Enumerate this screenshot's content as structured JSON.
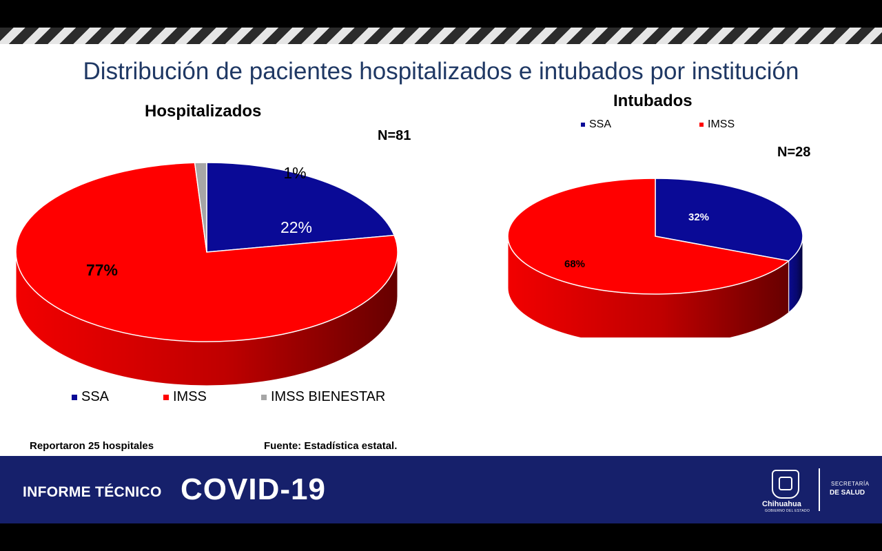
{
  "slide_title": "Distribución de pacientes hospitalizados e intubados por institución",
  "colors": {
    "SSA": "#0a0a96",
    "IMSS": "#ff0000",
    "IMSS BIENESTAR": "#a6a6a6",
    "title": "#1f3864",
    "footer": "#16206b"
  },
  "chart_data": [
    {
      "type": "pie",
      "title": "Hospitalizados",
      "n_label": "N=81",
      "series": [
        {
          "name": "SSA",
          "value": 22,
          "label": "22%"
        },
        {
          "name": "IMSS",
          "value": 77,
          "label": "77%"
        },
        {
          "name": "IMSS BIENESTAR",
          "value": 1,
          "label": "1%"
        }
      ],
      "legend": [
        "SSA",
        "IMSS",
        "IMSS BIENESTAR"
      ],
      "legend_position": "bottom"
    },
    {
      "type": "pie",
      "title": "Intubados",
      "n_label": "N=28",
      "series": [
        {
          "name": "SSA",
          "value": 32,
          "label": "32%"
        },
        {
          "name": "IMSS",
          "value": 68,
          "label": "68%"
        }
      ],
      "legend": [
        "SSA",
        "IMSS"
      ],
      "legend_position": "top"
    }
  ],
  "notes": {
    "hospitals": "Reportaron 25 hospitales",
    "source": "Fuente: Estadística estatal."
  },
  "footer": {
    "report_label": "INFORME TÉCNICO",
    "covid_label": "COVID-19",
    "state_name": "Chihuahua",
    "state_sub": "GOBIERNO DEL ESTADO",
    "dept_line1": "SECRETARÍA",
    "dept_line2": "DE SALUD"
  }
}
